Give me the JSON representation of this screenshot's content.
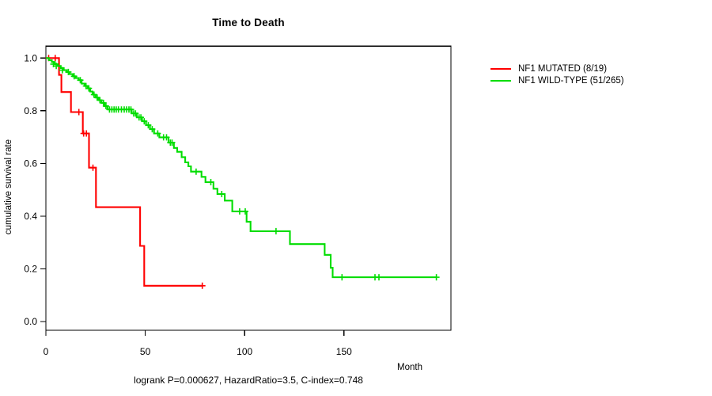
{
  "chart_data": {
    "type": "line",
    "subtype": "kaplan-meier-step",
    "title": "Time to Death",
    "xlabel": "Month",
    "ylabel": "cumulative survival rate",
    "caption": "logrank P=0.000627, HazardRatio=3.5, C-index=0.748",
    "x_ticks": [
      0,
      50,
      100,
      150
    ],
    "y_tick_labels": [
      "0.0",
      "0.2",
      "0.4",
      "0.6",
      "0.8",
      "1.0"
    ],
    "y_tick_values": [
      0.0,
      0.2,
      0.4,
      0.6,
      0.8,
      1.0
    ],
    "xlim": [
      0,
      203.8
    ],
    "ylim": [
      0,
      1
    ],
    "grid": false,
    "legend_position": "top-right-outside",
    "axis_color": "#000000",
    "series": [
      {
        "name": "NF1 MUTATED (8/19)",
        "color": "#FF0000",
        "start": [
          0,
          1.0
        ],
        "steps": [
          [
            6.6,
            0.936
          ],
          [
            7.8,
            0.871
          ],
          [
            12.6,
            0.795
          ],
          [
            18.6,
            0.714
          ],
          [
            21.7,
            0.584
          ],
          [
            25.2,
            0.434
          ],
          [
            47.4,
            0.287
          ],
          [
            49.5,
            0.136
          ]
        ],
        "end_time": 78.7,
        "censors": [
          [
            1.4,
            1.0
          ],
          [
            4.7,
            1.0
          ],
          [
            16.6,
            0.795
          ],
          [
            19.0,
            0.714
          ],
          [
            20.4,
            0.714
          ],
          [
            23.7,
            0.584
          ],
          [
            78.7,
            0.136
          ]
        ]
      },
      {
        "name": "NF1 WILD-TYPE (51/265)",
        "color": "#00DD00",
        "start": [
          0,
          1.0
        ],
        "steps": [
          [
            1.5,
            0.992
          ],
          [
            3.0,
            0.985
          ],
          [
            4.5,
            0.977
          ],
          [
            6.0,
            0.97
          ],
          [
            7.5,
            0.962
          ],
          [
            9.0,
            0.954
          ],
          [
            10.5,
            0.947
          ],
          [
            12.0,
            0.939
          ],
          [
            13.5,
            0.931
          ],
          [
            15.0,
            0.924
          ],
          [
            16.5,
            0.916
          ],
          [
            18.0,
            0.903
          ],
          [
            19.5,
            0.894
          ],
          [
            21.0,
            0.885
          ],
          [
            22.3,
            0.873
          ],
          [
            23.5,
            0.861
          ],
          [
            25.0,
            0.85
          ],
          [
            26.5,
            0.84
          ],
          [
            28.0,
            0.83
          ],
          [
            29.5,
            0.818
          ],
          [
            31.0,
            0.805
          ],
          [
            43.2,
            0.79
          ],
          [
            45.8,
            0.775
          ],
          [
            48.4,
            0.76
          ],
          [
            50.4,
            0.745
          ],
          [
            52.4,
            0.73
          ],
          [
            54.4,
            0.714
          ],
          [
            57.1,
            0.699
          ],
          [
            61.7,
            0.679
          ],
          [
            64.4,
            0.659
          ],
          [
            66.1,
            0.644
          ],
          [
            68.3,
            0.624
          ],
          [
            70.1,
            0.604
          ],
          [
            71.7,
            0.589
          ],
          [
            73.0,
            0.569
          ],
          [
            78.3,
            0.549
          ],
          [
            80.3,
            0.529
          ],
          [
            84.3,
            0.504
          ],
          [
            86.3,
            0.484
          ],
          [
            90.0,
            0.459
          ],
          [
            93.8,
            0.418
          ],
          [
            101.0,
            0.379
          ],
          [
            103.0,
            0.343
          ],
          [
            122.8,
            0.294
          ],
          [
            140.3,
            0.253
          ],
          [
            143.3,
            0.204
          ],
          [
            144.3,
            0.168
          ]
        ],
        "end_time": 196.5,
        "censors": [
          [
            3.8,
            0.977
          ],
          [
            5.2,
            0.97
          ],
          [
            8.3,
            0.954
          ],
          [
            11.3,
            0.947
          ],
          [
            14.2,
            0.931
          ],
          [
            17.3,
            0.916
          ],
          [
            20.2,
            0.894
          ],
          [
            21.6,
            0.885
          ],
          [
            24.2,
            0.861
          ],
          [
            25.8,
            0.85
          ],
          [
            27.2,
            0.84
          ],
          [
            29.0,
            0.83
          ],
          [
            30.2,
            0.818
          ],
          [
            32.0,
            0.805
          ],
          [
            33.2,
            0.805
          ],
          [
            34.3,
            0.805
          ],
          [
            35.4,
            0.805
          ],
          [
            36.5,
            0.805
          ],
          [
            38.0,
            0.805
          ],
          [
            39.4,
            0.805
          ],
          [
            40.6,
            0.805
          ],
          [
            41.8,
            0.805
          ],
          [
            42.8,
            0.805
          ],
          [
            44.2,
            0.79
          ],
          [
            45.1,
            0.79
          ],
          [
            46.9,
            0.775
          ],
          [
            47.8,
            0.775
          ],
          [
            49.5,
            0.76
          ],
          [
            51.5,
            0.745
          ],
          [
            53.5,
            0.73
          ],
          [
            56.3,
            0.714
          ],
          [
            59.2,
            0.699
          ],
          [
            60.7,
            0.699
          ],
          [
            62.6,
            0.679
          ],
          [
            63.5,
            0.679
          ],
          [
            75.6,
            0.569
          ],
          [
            83.0,
            0.529
          ],
          [
            88.5,
            0.484
          ],
          [
            97.5,
            0.418
          ],
          [
            100.3,
            0.418
          ],
          [
            115.8,
            0.343
          ],
          [
            149.0,
            0.168
          ],
          [
            165.6,
            0.168
          ],
          [
            167.6,
            0.168
          ],
          [
            196.5,
            0.168
          ]
        ]
      }
    ]
  }
}
